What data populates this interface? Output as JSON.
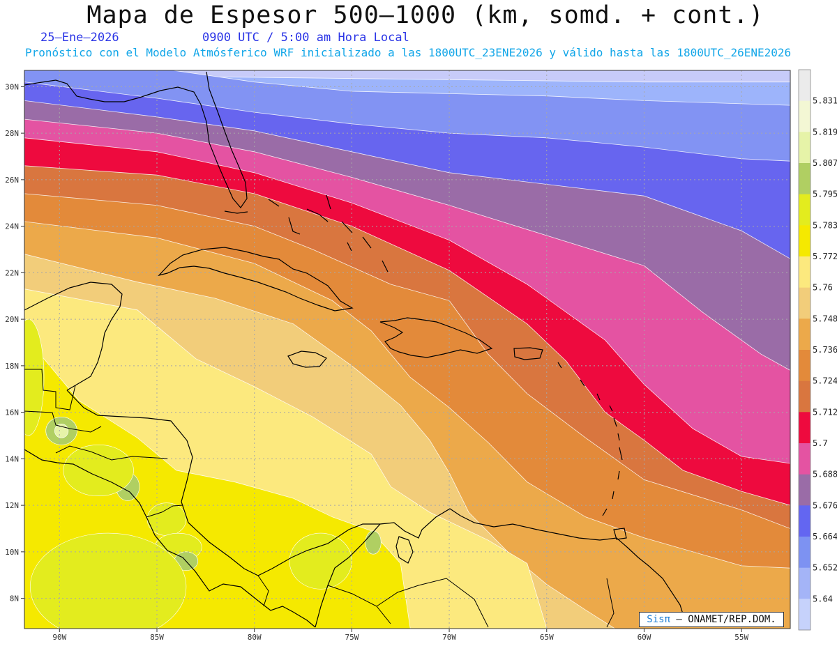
{
  "header": {
    "title": "Mapa de Espesor 500–1000 (km, somd. + cont.)",
    "date": "25–Ene–2026",
    "time": "0900 UTC / 5:00 am Hora Local",
    "forecast": "Pronóstico con el Modelo Atmósferico WRF inicializado a las 1800UTC_23ENE2026 y válido hasta las  1800UTC_26ENE2026"
  },
  "credit": {
    "logo": "Sisπ",
    "text": "– ONAMET/REP.DOM."
  },
  "axes": {
    "lat_labels": [
      "30N",
      "28N",
      "26N",
      "24N",
      "22N",
      "20N",
      "18N",
      "16N",
      "14N",
      "12N",
      "10N",
      "8N"
    ],
    "lat_values": [
      30,
      28,
      26,
      24,
      22,
      20,
      18,
      16,
      14,
      12,
      10,
      8
    ],
    "lon_labels": [
      "90W",
      "85W",
      "80W",
      "75W",
      "70W",
      "65W",
      "60W",
      "55W"
    ],
    "lon_values": [
      -90,
      -85,
      -80,
      -75,
      -70,
      -65,
      -60,
      -55
    ],
    "lat_range": [
      6.7,
      30.7
    ],
    "lon_range": [
      -91.8,
      -52.5
    ]
  },
  "colorbar": {
    "labels": [
      "5.831",
      "5.819",
      "5.807",
      "5.795",
      "5.783",
      "5.772",
      "5.76",
      "5.748",
      "5.736",
      "5.724",
      "5.712",
      "5.7",
      "5.688",
      "5.676",
      "5.664",
      "5.652",
      "5.64"
    ],
    "colors_top_to_bottom": [
      "#ebebeb",
      "#f3f7d4",
      "#e6f3a8",
      "#b0cf62",
      "#e3ec1e",
      "#f5e900",
      "#fce97e",
      "#f2cd7a",
      "#eca94a",
      "#e38a3a",
      "#d9763f",
      "#ee0a3e",
      "#e453a2",
      "#9a6ca7",
      "#6366f1",
      "#7d92f2",
      "#a4b4f7",
      "#c6d2fb"
    ]
  },
  "map_bands": {
    "colors": [
      "#c7cbf9",
      "#9db4fb",
      "#8293f3",
      "#6765ef",
      "#9a6ca7",
      "#e453a2",
      "#ee0a3e",
      "#d9763f",
      "#e38a3a",
      "#eca94a",
      "#f2cd7a",
      "#fce97e",
      "#f5e900"
    ],
    "boundaries": [
      [
        [
          -91.8,
          30.5
        ],
        [
          -80,
          30.4
        ],
        [
          -70,
          30.3
        ],
        [
          -60,
          30.2
        ],
        [
          -52.5,
          30.2
        ]
      ],
      [
        [
          -91.8,
          31.1
        ],
        [
          -85,
          30.8
        ],
        [
          -80,
          30.2
        ],
        [
          -75,
          29.8
        ],
        [
          -70,
          29.7
        ],
        [
          -65,
          29.6
        ],
        [
          -60,
          29.4
        ],
        [
          -52.5,
          29.2
        ]
      ],
      [
        [
          -91.8,
          30.2
        ],
        [
          -85,
          29.5
        ],
        [
          -80,
          28.9
        ],
        [
          -75,
          28.4
        ],
        [
          -70,
          28.0
        ],
        [
          -65,
          27.8
        ],
        [
          -60,
          27.4
        ],
        [
          -55,
          26.9
        ],
        [
          -52.5,
          26.8
        ]
      ],
      [
        [
          -91.8,
          29.4
        ],
        [
          -85,
          28.7
        ],
        [
          -80,
          28.1
        ],
        [
          -75,
          27.2
        ],
        [
          -70,
          26.3
        ],
        [
          -65,
          25.8
        ],
        [
          -60,
          25.3
        ],
        [
          -55,
          23.8
        ],
        [
          -52.5,
          22.6
        ]
      ],
      [
        [
          -91.8,
          28.6
        ],
        [
          -85,
          28.0
        ],
        [
          -80,
          27.2
        ],
        [
          -75,
          26.1
        ],
        [
          -70,
          24.9
        ],
        [
          -65,
          23.6
        ],
        [
          -60,
          22.3
        ],
        [
          -57,
          20.3
        ],
        [
          -54,
          18.5
        ],
        [
          -52.5,
          17.8
        ]
      ],
      [
        [
          -91.8,
          27.8
        ],
        [
          -85,
          27.2
        ],
        [
          -80,
          26.3
        ],
        [
          -75,
          25.0
        ],
        [
          -70,
          23.4
        ],
        [
          -66,
          21.5
        ],
        [
          -62,
          19.1
        ],
        [
          -60,
          17.2
        ],
        [
          -57.5,
          15.3
        ],
        [
          -55,
          14.1
        ],
        [
          -52.5,
          13.8
        ]
      ],
      [
        [
          -91.8,
          26.6
        ],
        [
          -85,
          26.2
        ],
        [
          -80,
          25.4
        ],
        [
          -75,
          24.0
        ],
        [
          -70,
          22.1
        ],
        [
          -66,
          19.8
        ],
        [
          -64,
          18.2
        ],
        [
          -62,
          16.0
        ],
        [
          -60,
          14.8
        ],
        [
          -58,
          13.5
        ],
        [
          -55,
          12.6
        ],
        [
          -52.5,
          12.0
        ]
      ],
      [
        [
          -91.8,
          25.4
        ],
        [
          -85,
          24.9
        ],
        [
          -80,
          24.0
        ],
        [
          -77,
          23.0
        ],
        [
          -73,
          21.5
        ],
        [
          -70,
          20.8
        ],
        [
          -68,
          18.5
        ],
        [
          -66,
          16.8
        ],
        [
          -63,
          14.9
        ],
        [
          -60,
          13.1
        ],
        [
          -55,
          11.8
        ],
        [
          -52.5,
          11.0
        ]
      ],
      [
        [
          -91.8,
          24.2
        ],
        [
          -85,
          23.5
        ],
        [
          -80,
          22.4
        ],
        [
          -76,
          20.8
        ],
        [
          -74,
          19.5
        ],
        [
          -72,
          17.5
        ],
        [
          -70,
          16.2
        ],
        [
          -68,
          14.7
        ],
        [
          -66,
          13.0
        ],
        [
          -63,
          11.5
        ],
        [
          -60,
          10.6
        ],
        [
          -55,
          9.4
        ],
        [
          -52.5,
          9.3
        ]
      ],
      [
        [
          -91.8,
          22.8
        ],
        [
          -86,
          21.6
        ],
        [
          -82,
          20.9
        ],
        [
          -78,
          19.8
        ],
        [
          -75,
          18.0
        ],
        [
          -72.5,
          16.3
        ],
        [
          -71,
          14.8
        ],
        [
          -70,
          13.4
        ],
        [
          -69,
          11.7
        ],
        [
          -67,
          10.0
        ],
        [
          -65,
          8.6
        ],
        [
          -63,
          7.5
        ],
        [
          -61.5,
          6.7
        ]
      ],
      [
        [
          -91.8,
          21.3
        ],
        [
          -86,
          20.4
        ],
        [
          -83,
          18.3
        ],
        [
          -80,
          17.1
        ],
        [
          -77,
          15.8
        ],
        [
          -74,
          14.2
        ],
        [
          -73,
          12.8
        ],
        [
          -71,
          11.7
        ],
        [
          -68,
          10.5
        ],
        [
          -66,
          9.5
        ],
        [
          -65,
          6.7
        ]
      ],
      [
        [
          -91.8,
          19.3
        ],
        [
          -89,
          16.5
        ],
        [
          -86,
          14.9
        ],
        [
          -84,
          13.5
        ],
        [
          -81,
          13.0
        ],
        [
          -78,
          12.3
        ],
        [
          -76,
          11.5
        ],
        [
          -74,
          10.9
        ],
        [
          -72.5,
          9.5
        ],
        [
          -72,
          6.7
        ]
      ]
    ],
    "green_patches": [
      {
        "center": [
          -91.6,
          17.5
        ],
        "radius_deg": [
          0.8,
          2.5
        ],
        "color": "#e3ec1e"
      },
      {
        "center": [
          -89.9,
          15.2
        ],
        "radius_deg": [
          0.8,
          0.6
        ],
        "color": "#b0cf62"
      },
      {
        "center": [
          -89.9,
          15.2
        ],
        "radius_deg": [
          0.35,
          0.3
        ],
        "color": "#e6f3a8"
      },
      {
        "center": [
          -86.5,
          12.8
        ],
        "radius_deg": [
          0.6,
          0.6
        ],
        "color": "#b0cf62"
      },
      {
        "center": [
          -88.0,
          13.5
        ],
        "radius_deg": [
          1.8,
          1.1
        ],
        "color": "#e3ec1e"
      },
      {
        "center": [
          -84.5,
          11.4
        ],
        "radius_deg": [
          1.0,
          0.7
        ],
        "color": "#e3ec1e"
      },
      {
        "center": [
          -83.9,
          10.2
        ],
        "radius_deg": [
          1.2,
          0.6
        ],
        "color": "#e3ec1e"
      },
      {
        "center": [
          -83.5,
          9.6
        ],
        "radius_deg": [
          0.6,
          0.4
        ],
        "color": "#b0cf62"
      },
      {
        "center": [
          -76.6,
          9.6
        ],
        "radius_deg": [
          1.6,
          1.2
        ],
        "color": "#e3ec1e"
      },
      {
        "center": [
          -87.5,
          8.5
        ],
        "radius_deg": [
          4.0,
          2.3
        ],
        "color": "#e3ec1e"
      },
      {
        "center": [
          -73.9,
          10.4
        ],
        "radius_deg": [
          0.4,
          0.5
        ],
        "color": "#b0cf62"
      }
    ]
  }
}
